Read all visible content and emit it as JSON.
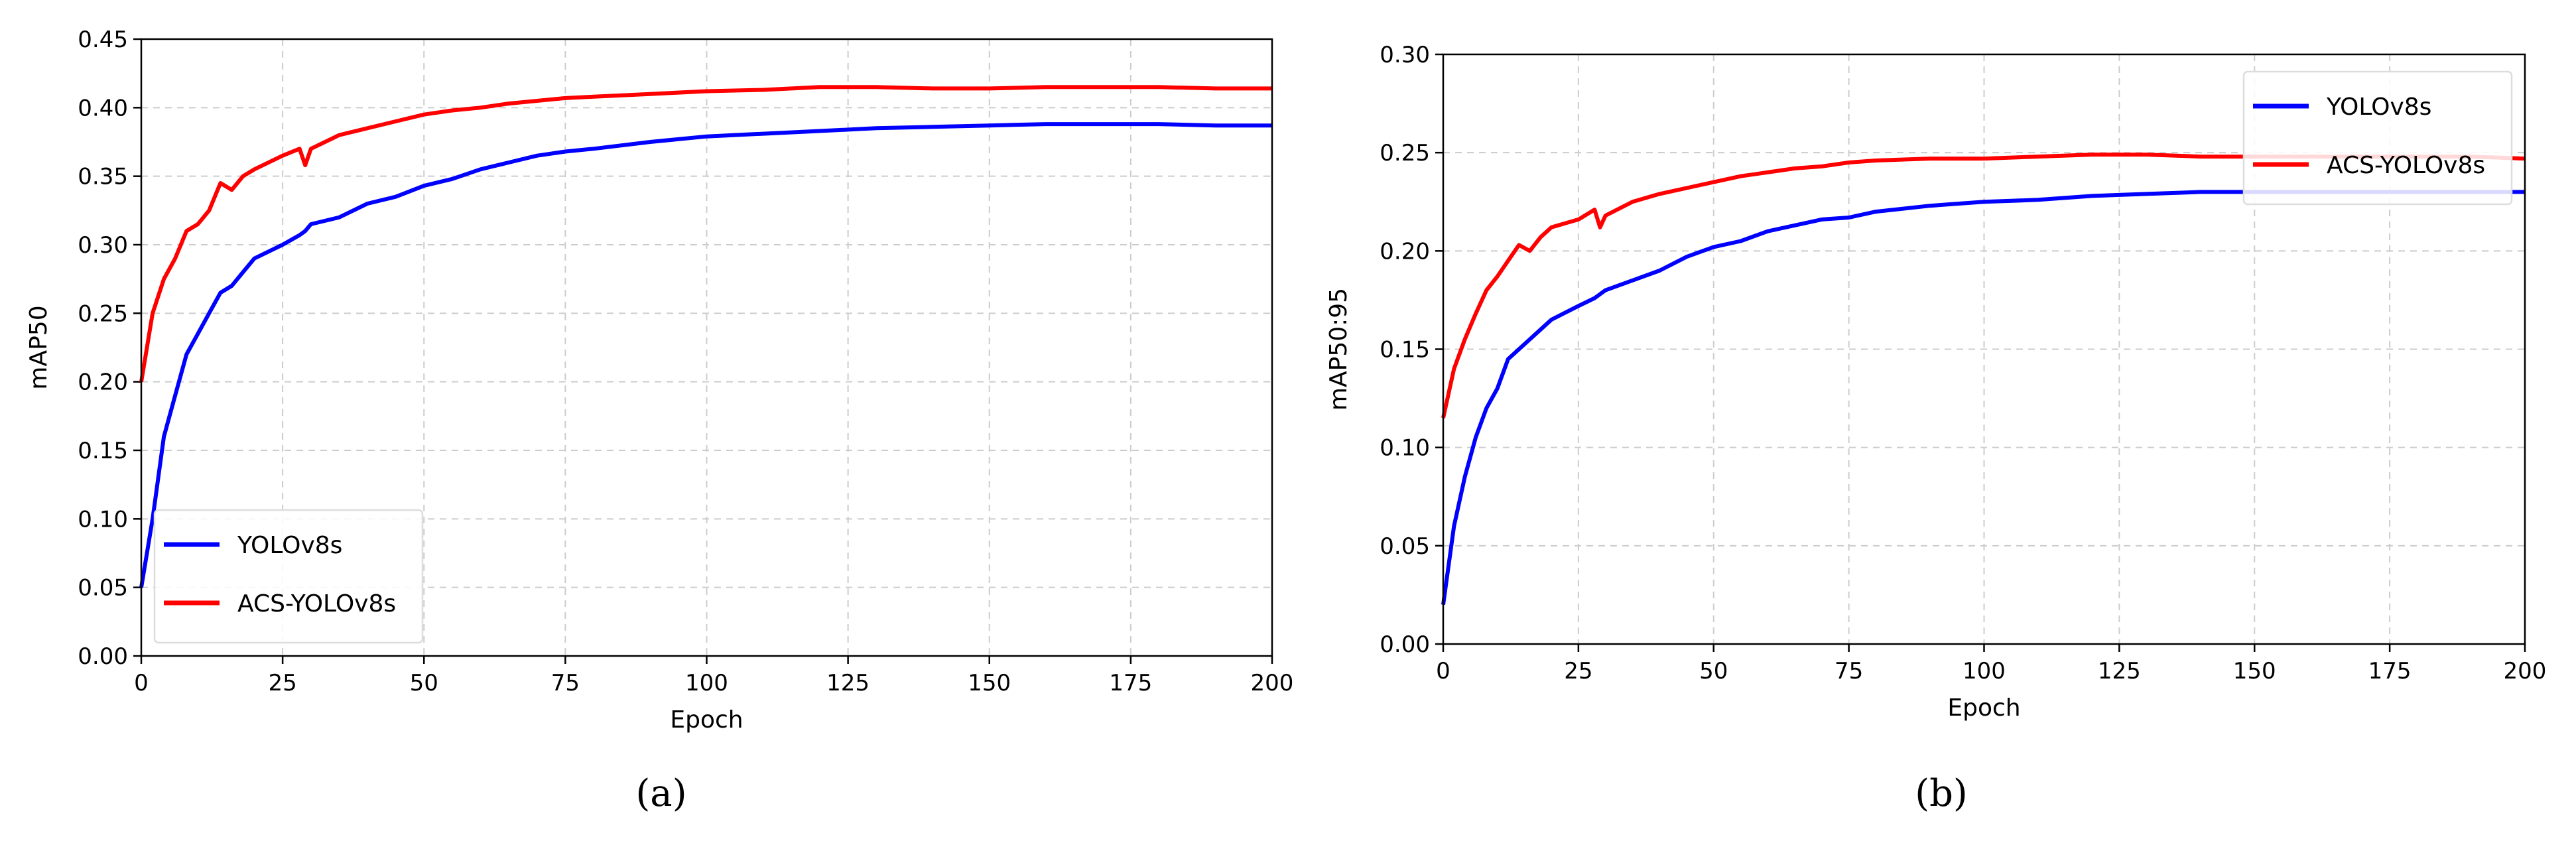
{
  "chart_data": [
    {
      "type": "line",
      "caption": "(a)",
      "xlabel": "Epoch",
      "ylabel": "mAP50",
      "xlim": [
        0,
        200
      ],
      "ylim": [
        0,
        0.45
      ],
      "xticks": [
        "0",
        "25",
        "50",
        "75",
        "100",
        "125",
        "150",
        "175",
        "200"
      ],
      "yticks": [
        "0.00",
        "0.05",
        "0.10",
        "0.15",
        "0.20",
        "0.25",
        "0.30",
        "0.35",
        "0.40",
        "0.45"
      ],
      "grid": true,
      "legend": "lower-left",
      "x": [
        0,
        2,
        4,
        6,
        8,
        10,
        12,
        14,
        16,
        18,
        20,
        25,
        28,
        29,
        30,
        35,
        40,
        45,
        50,
        55,
        60,
        65,
        70,
        75,
        80,
        90,
        100,
        110,
        120,
        130,
        140,
        150,
        160,
        170,
        180,
        190,
        200
      ],
      "series": [
        {
          "name": "YOLOv8s",
          "color": "#0000ff",
          "values": [
            0.05,
            0.1,
            0.16,
            0.19,
            0.22,
            0.235,
            0.25,
            0.265,
            0.27,
            0.28,
            0.29,
            0.3,
            0.307,
            0.31,
            0.315,
            0.32,
            0.33,
            0.335,
            0.343,
            0.348,
            0.355,
            0.36,
            0.365,
            0.368,
            0.37,
            0.375,
            0.379,
            0.381,
            0.383,
            0.385,
            0.386,
            0.387,
            0.388,
            0.388,
            0.388,
            0.387,
            0.387
          ]
        },
        {
          "name": "ACS-YOLOv8s",
          "color": "#ff0000",
          "values": [
            0.2,
            0.25,
            0.275,
            0.29,
            0.31,
            0.315,
            0.325,
            0.345,
            0.34,
            0.35,
            0.355,
            0.365,
            0.37,
            0.358,
            0.37,
            0.38,
            0.385,
            0.39,
            0.395,
            0.398,
            0.4,
            0.403,
            0.405,
            0.407,
            0.408,
            0.41,
            0.412,
            0.413,
            0.415,
            0.415,
            0.414,
            0.414,
            0.415,
            0.415,
            0.415,
            0.414,
            0.414
          ]
        }
      ]
    },
    {
      "type": "line",
      "caption": "(b)",
      "xlabel": "Epoch",
      "ylabel": "mAP50:95",
      "xlim": [
        0,
        200
      ],
      "ylim": [
        0,
        0.3
      ],
      "xticks": [
        "0",
        "25",
        "50",
        "75",
        "100",
        "125",
        "150",
        "175",
        "200"
      ],
      "yticks": [
        "0.00",
        "0.05",
        "0.10",
        "0.15",
        "0.20",
        "0.25",
        "0.30"
      ],
      "grid": true,
      "legend": "upper-right",
      "x": [
        0,
        2,
        4,
        6,
        8,
        10,
        12,
        14,
        16,
        18,
        20,
        25,
        28,
        29,
        30,
        35,
        40,
        45,
        50,
        55,
        60,
        65,
        70,
        75,
        80,
        90,
        100,
        110,
        120,
        130,
        140,
        150,
        160,
        170,
        180,
        190,
        200
      ],
      "series": [
        {
          "name": "YOLOv8s",
          "color": "#0000ff",
          "values": [
            0.02,
            0.06,
            0.085,
            0.105,
            0.12,
            0.13,
            0.145,
            0.15,
            0.155,
            0.16,
            0.165,
            0.172,
            0.176,
            0.178,
            0.18,
            0.185,
            0.19,
            0.197,
            0.202,
            0.205,
            0.21,
            0.213,
            0.216,
            0.217,
            0.22,
            0.223,
            0.225,
            0.226,
            0.228,
            0.229,
            0.23,
            0.23,
            0.23,
            0.23,
            0.23,
            0.23,
            0.23
          ]
        },
        {
          "name": "ACS-YOLOv8s",
          "color": "#ff0000",
          "values": [
            0.115,
            0.14,
            0.155,
            0.168,
            0.18,
            0.187,
            0.195,
            0.203,
            0.2,
            0.207,
            0.212,
            0.216,
            0.221,
            0.212,
            0.218,
            0.225,
            0.229,
            0.232,
            0.235,
            0.238,
            0.24,
            0.242,
            0.243,
            0.245,
            0.246,
            0.247,
            0.247,
            0.248,
            0.249,
            0.249,
            0.248,
            0.248,
            0.248,
            0.248,
            0.248,
            0.248,
            0.247
          ]
        }
      ]
    }
  ]
}
